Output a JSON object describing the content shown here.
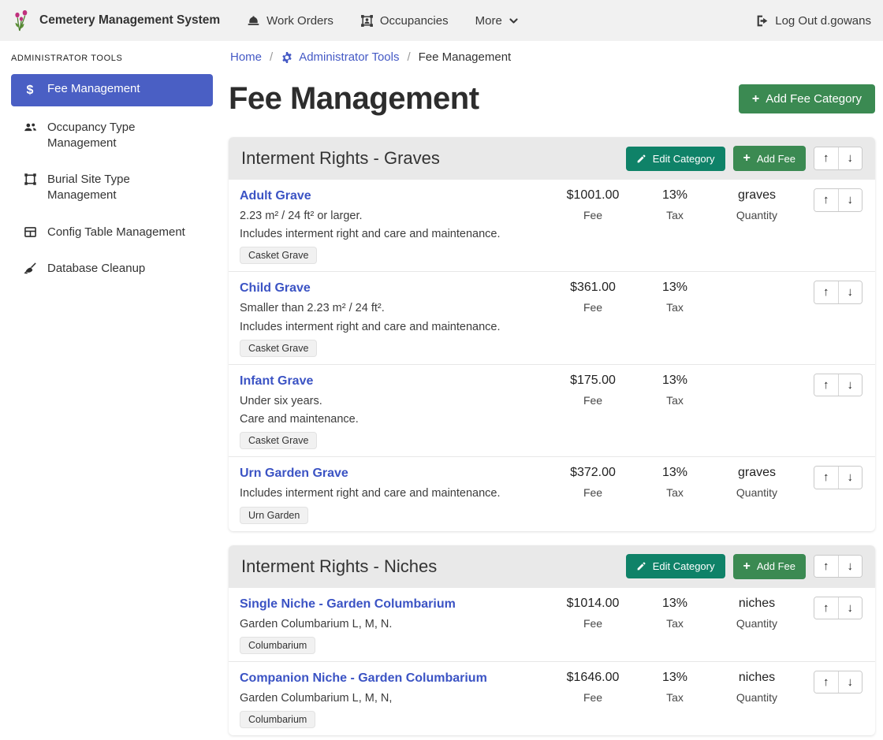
{
  "navbar": {
    "brand": "Cemetery Management System",
    "items": [
      {
        "label": "Work Orders",
        "icon": "hardhat-icon"
      },
      {
        "label": "Occupancies",
        "icon": "occupancy-frame-icon"
      },
      {
        "label": "More",
        "icon": "chevron-down-icon"
      }
    ],
    "logout_label": "Log Out d.gowans",
    "logout_icon": "logout-icon"
  },
  "sidebar": {
    "heading": "ADMINISTRATOR TOOLS",
    "items": [
      {
        "label": "Fee Management",
        "icon": "dollar-icon",
        "active": true
      },
      {
        "label": "Occupancy Type Management",
        "icon": "people-icon",
        "active": false
      },
      {
        "label": "Burial Site Type Management",
        "icon": "frame-icon",
        "active": false
      },
      {
        "label": "Config Table Management",
        "icon": "table-icon",
        "active": false
      },
      {
        "label": "Database Cleanup",
        "icon": "broom-icon",
        "active": false
      }
    ]
  },
  "breadcrumb": {
    "home": "Home",
    "separator": "/",
    "admin": "Administrator Tools",
    "admin_icon": "gear-icon",
    "current": "Fee Management"
  },
  "page": {
    "title": "Fee Management",
    "add_category_label": "Add Fee Category"
  },
  "actions": {
    "edit_category": "Edit Category",
    "add_fee": "Add Fee"
  },
  "labels": {
    "fee": "Fee",
    "tax": "Tax",
    "quantity": "Quantity"
  },
  "icons": {
    "plus": "+",
    "arrow_up": "↑",
    "arrow_down": "↓",
    "dollar": "$"
  },
  "categories": [
    {
      "title": "Interment Rights - Graves",
      "fees": [
        {
          "name": "Adult Grave",
          "descriptions": [
            "2.23 m² / 24 ft² or larger.",
            "Includes interment right and care and maintenance."
          ],
          "badge": "Casket Grave",
          "fee": "$1001.00",
          "tax": "13%",
          "quantity": "graves"
        },
        {
          "name": "Child Grave",
          "descriptions": [
            "Smaller than 2.23 m² / 24 ft².",
            "Includes interment right and care and maintenance."
          ],
          "badge": "Casket Grave",
          "fee": "$361.00",
          "tax": "13%",
          "quantity": null
        },
        {
          "name": "Infant Grave",
          "descriptions": [
            "Under six years.",
            "Care and maintenance."
          ],
          "badge": "Casket Grave",
          "fee": "$175.00",
          "tax": "13%",
          "quantity": null
        },
        {
          "name": "Urn Garden Grave",
          "descriptions": [
            "Includes interment right and care and maintenance."
          ],
          "badge": "Urn Garden",
          "fee": "$372.00",
          "tax": "13%",
          "quantity": "graves"
        }
      ]
    },
    {
      "title": "Interment Rights - Niches",
      "fees": [
        {
          "name": "Single Niche - Garden Columbarium",
          "descriptions": [
            "Garden Columbarium L, M, N."
          ],
          "badge": "Columbarium",
          "fee": "$1014.00",
          "tax": "13%",
          "quantity": "niches"
        },
        {
          "name": "Companion Niche - Garden Columbarium",
          "descriptions": [
            "Garden Columbarium L, M, N,"
          ],
          "badge": "Columbarium",
          "fee": "$1646.00",
          "tax": "13%",
          "quantity": "niches"
        }
      ]
    }
  ]
}
